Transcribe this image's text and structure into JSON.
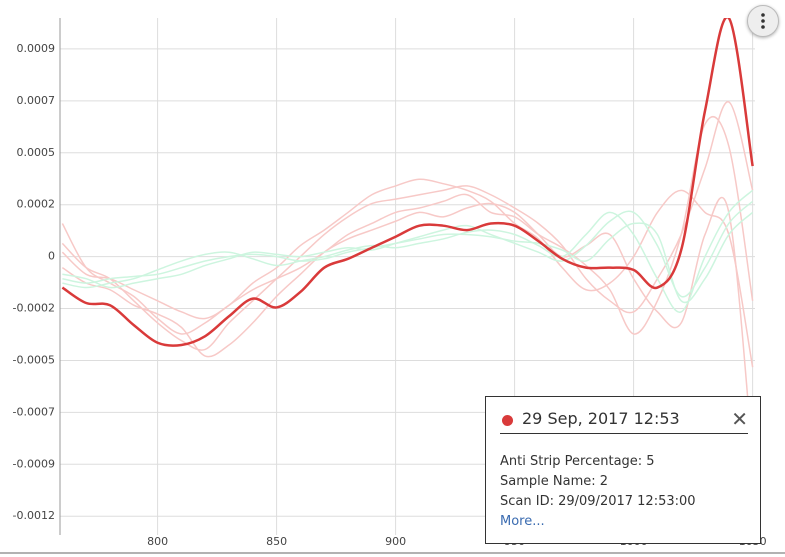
{
  "chart_data": {
    "type": "line",
    "x": [
      760,
      770,
      780,
      790,
      800,
      810,
      820,
      830,
      840,
      850,
      860,
      870,
      880,
      890,
      900,
      910,
      920,
      930,
      940,
      950,
      960,
      970,
      980,
      990,
      1000,
      1010,
      1020,
      1030,
      1040,
      1050
    ],
    "xlim": [
      759,
      1051
    ],
    "xticks": [
      800,
      850,
      900,
      950,
      1000,
      1050
    ],
    "ylim": [
      -0.00126,
      0.00108
    ],
    "yticks": [
      {
        "value": -0.001175,
        "label": "-0.0012"
      },
      {
        "value": -0.00094,
        "label": "-0.0009"
      },
      {
        "value": -0.000705,
        "label": "-0.0007"
      },
      {
        "value": -0.00047,
        "label": "-0.0005"
      },
      {
        "value": -0.000235,
        "label": "-0.0002"
      },
      0,
      {
        "value": 0.000235,
        "label": "0.0002"
      },
      {
        "value": 0.00047,
        "label": "0.0005"
      },
      {
        "value": 0.000705,
        "label": "0.0007"
      },
      {
        "value": 0.00094,
        "label": "0.0009"
      }
    ],
    "grid": true,
    "series": [
      {
        "color": "#f7c9c7",
        "line_width": 1.5,
        "values": [
          6e-05,
          -5e-05,
          -0.0001,
          -0.0002,
          -0.0003,
          -0.00038,
          -0.00042,
          -0.0003,
          -0.0002,
          -0.0001,
          0,
          0.0001,
          0.00018,
          0.00024,
          0.00026,
          0.00028,
          0.0003,
          0.00032,
          0.00028,
          0.00022,
          0.00015,
          5e-05,
          -0.0001,
          -0.0002,
          -0.00025,
          -0.0001,
          0.0001,
          0.0004,
          0.0007,
          0.0003
        ]
      },
      {
        "color": "#f7c9c7",
        "line_width": 1.5,
        "values": [
          0.00015,
          -5e-05,
          -0.00012,
          -0.00018,
          -0.00028,
          -0.00035,
          -0.0003,
          -0.00022,
          -0.00015,
          -0.0001,
          -5e-05,
          2e-05,
          0.0001,
          0.00015,
          0.0002,
          0.00022,
          0.00025,
          0.00028,
          0.0002,
          0.00018,
          0.0001,
          4e-05,
          -4e-05,
          -0.00015,
          -0.00035,
          -0.0002,
          0.0001,
          0.0006,
          0.0005,
          -0.0002
        ]
      },
      {
        "color": "#f7c9c7",
        "line_width": 1.5,
        "values": [
          -5e-05,
          -0.00012,
          -0.00015,
          -0.00022,
          -0.00026,
          -0.00032,
          -0.00045,
          -0.0004,
          -0.0003,
          -0.00018,
          -8e-05,
          2e-05,
          8e-05,
          0.00012,
          0.00016,
          0.0002,
          0.00018,
          0.00022,
          0.00024,
          0.0002,
          0.0001,
          0,
          5e-05,
          0.0001,
          -0.0001,
          -0.00025,
          -0.0003,
          0.0001,
          0.0002,
          -0.0009
        ]
      },
      {
        "color": "#f7c9c7",
        "line_width": 1.5,
        "values": [
          2e-05,
          -8e-05,
          -0.0001,
          -0.00015,
          -0.0002,
          -0.00025,
          -0.00028,
          -0.00022,
          -0.00012,
          -5e-05,
          5e-05,
          0.00012,
          0.0002,
          0.00028,
          0.00032,
          0.00035,
          0.00033,
          0.0003,
          0.00025,
          0.00015,
          8e-05,
          -5e-05,
          -0.00015,
          -0.00012,
          0,
          0.0002,
          0.0003,
          0.0002,
          0.0001,
          -0.0005
        ]
      },
      {
        "color": "#cdf5df",
        "line_width": 1.5,
        "values": [
          -0.0001,
          -0.00012,
          -0.0001,
          -9e-05,
          -8e-05,
          -5e-05,
          -2e-05,
          0,
          1e-05,
          0,
          -2e-05,
          -1e-05,
          2e-05,
          4e-05,
          6e-05,
          8e-05,
          0.0001,
          0.0001,
          9e-05,
          7e-05,
          6e-05,
          3e-05,
          -2e-05,
          8e-05,
          0.00015,
          0.0001,
          -0.0002,
          -0.0001,
          0.0001,
          0.0002
        ]
      },
      {
        "color": "#cdf5df",
        "line_width": 1.5,
        "values": [
          -0.00012,
          -0.00014,
          -0.00012,
          -0.0001,
          -6e-05,
          -2e-05,
          1e-05,
          2e-05,
          -1e-05,
          -4e-05,
          -2e-05,
          0,
          3e-05,
          5e-05,
          4e-05,
          6e-05,
          8e-05,
          0.00011,
          0.00012,
          0.0001,
          5e-05,
          0,
          0.0001,
          0.0002,
          0.0001,
          -0.0001,
          -0.00025,
          0,
          0.0002,
          0.0003
        ]
      },
      {
        "color": "#cdf5df",
        "line_width": 1.5,
        "values": [
          -8e-05,
          -0.0001,
          -0.00014,
          -0.00012,
          -0.0001,
          -8e-05,
          -4e-05,
          -1e-05,
          2e-05,
          1e-05,
          0,
          2e-05,
          4e-05,
          3e-05,
          6e-05,
          9e-05,
          0.00012,
          0.00014,
          0.0001,
          6e-05,
          2e-05,
          -2e-05,
          5e-05,
          0.00016,
          0.0002,
          5e-05,
          -0.00018,
          -5e-05,
          0.00015,
          0.00025
        ]
      },
      {
        "color": "#d93a3a",
        "line_width": 2.5,
        "values": [
          -0.00014,
          -0.00021,
          -0.00022,
          -0.00031,
          -0.00039,
          -0.0004,
          -0.00036,
          -0.00027,
          -0.00019,
          -0.00023,
          -0.00016,
          -5e-05,
          -1e-05,
          4e-05,
          9e-05,
          0.00014,
          0.00014,
          0.00012,
          0.00015,
          0.00014,
          7e-05,
          -1e-05,
          -5e-05,
          -5e-05,
          -6e-05,
          -0.00014,
          3e-05,
          0.00066,
          0.00108,
          0.00041
        ]
      }
    ]
  },
  "tooltip": {
    "title": "29 Sep, 2017 12:53",
    "marker_color": "#d93a3a",
    "lines": [
      "Anti Strip Percentage: 5",
      "Sample Name: 2",
      "Scan ID: 29/09/2017 12:53:00"
    ],
    "link": "More..."
  }
}
